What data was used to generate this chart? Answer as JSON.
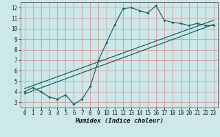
{
  "xlabel": "Humidex (Indice chaleur)",
  "bg_color": "#cce8e8",
  "grid_color": "#d8a0a0",
  "line_color": "#1a6060",
  "xlim": [
    -0.5,
    23.5
  ],
  "ylim": [
    2.5,
    12.5
  ],
  "xticks": [
    0,
    1,
    2,
    3,
    4,
    5,
    6,
    7,
    8,
    9,
    10,
    11,
    12,
    13,
    14,
    15,
    16,
    17,
    18,
    19,
    20,
    21,
    22,
    23
  ],
  "yticks": [
    3,
    4,
    5,
    6,
    7,
    8,
    9,
    10,
    11,
    12
  ],
  "line1_x": [
    0,
    1,
    2,
    3,
    4,
    5,
    6,
    7,
    8,
    9,
    10,
    11,
    12,
    13,
    14,
    15,
    16,
    17,
    18,
    19,
    20,
    21,
    22,
    23
  ],
  "line1_y": [
    4.0,
    4.4,
    4.0,
    3.5,
    3.3,
    3.7,
    2.8,
    3.3,
    4.5,
    7.0,
    8.7,
    10.4,
    11.9,
    12.0,
    11.7,
    11.5,
    12.2,
    10.8,
    10.6,
    10.5,
    10.3,
    10.5,
    10.3,
    10.3
  ],
  "line2_x": [
    0,
    23
  ],
  "line2_y": [
    3.8,
    10.4
  ],
  "line3_x": [
    0,
    23
  ],
  "line3_y": [
    4.3,
    10.8
  ]
}
